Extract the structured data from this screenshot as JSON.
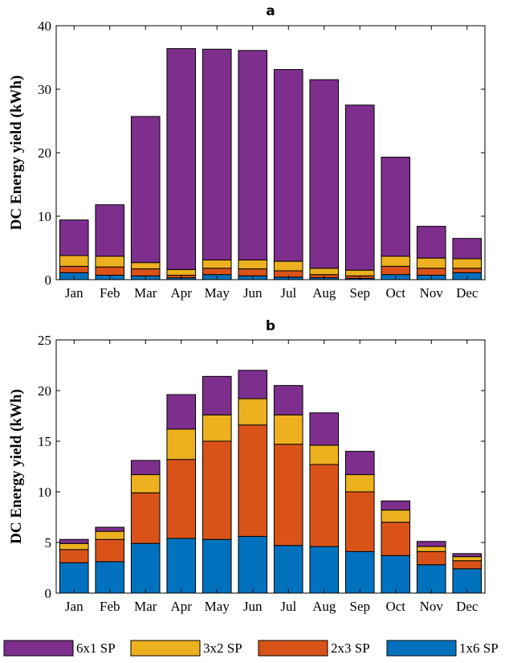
{
  "chart_data": [
    {
      "type": "bar",
      "stacked": true,
      "title": "a",
      "xlabel": "",
      "ylabel": "DC Energy yield (kWh)",
      "ylim": [
        0,
        40
      ],
      "yticks": [
        0,
        10,
        20,
        30,
        40
      ],
      "categories": [
        "Jan",
        "Feb",
        "Mar",
        "Apr",
        "May",
        "Jun",
        "Jul",
        "Aug",
        "Sep",
        "Oct",
        "Nov",
        "Dec"
      ],
      "series": [
        {
          "name": "1x6 SP",
          "color": "#0072bd",
          "values": [
            1.1,
            0.7,
            0.6,
            0.3,
            0.8,
            0.6,
            0.4,
            0.3,
            0.2,
            0.8,
            0.7,
            1.1
          ]
        },
        {
          "name": "2x3 SP",
          "color": "#d95319",
          "values": [
            1.0,
            1.3,
            1.1,
            0.4,
            1.0,
            1.1,
            1.0,
            0.5,
            0.4,
            1.3,
            1.1,
            0.7
          ]
        },
        {
          "name": "3x2 SP",
          "color": "#edb120",
          "values": [
            1.7,
            1.7,
            1.0,
            0.9,
            1.3,
            1.4,
            1.5,
            1.0,
            0.9,
            1.6,
            1.6,
            1.5
          ]
        },
        {
          "name": "6x1 SP",
          "color": "#7e2f8e",
          "values": [
            5.6,
            8.1,
            23.0,
            34.8,
            33.2,
            33.0,
            30.2,
            29.7,
            26.0,
            15.6,
            5.0,
            3.2
          ]
        }
      ]
    },
    {
      "type": "bar",
      "stacked": true,
      "title": "b",
      "xlabel": "",
      "ylabel": "DC Energy yield (kWh)",
      "ylim": [
        0,
        25
      ],
      "yticks": [
        0,
        5,
        10,
        15,
        20,
        25
      ],
      "categories": [
        "Jan",
        "Feb",
        "Mar",
        "Apr",
        "May",
        "Jun",
        "Jul",
        "Aug",
        "Sep",
        "Oct",
        "Nov",
        "Dec"
      ],
      "series": [
        {
          "name": "1x6 SP",
          "color": "#0072bd",
          "values": [
            3.0,
            3.1,
            4.9,
            5.4,
            5.3,
            5.6,
            4.7,
            4.6,
            4.1,
            3.7,
            2.8,
            2.4
          ]
        },
        {
          "name": "2x3 SP",
          "color": "#d95319",
          "values": [
            1.3,
            2.2,
            5.0,
            7.8,
            9.7,
            11.0,
            10.0,
            8.1,
            5.9,
            3.3,
            1.3,
            0.8
          ]
        },
        {
          "name": "3x2 SP",
          "color": "#edb120",
          "values": [
            0.6,
            0.8,
            1.8,
            3.0,
            2.6,
            2.6,
            2.9,
            1.9,
            1.7,
            1.2,
            0.5,
            0.4
          ]
        },
        {
          "name": "6x1 SP",
          "color": "#7e2f8e",
          "values": [
            0.4,
            0.4,
            1.4,
            3.4,
            3.8,
            2.8,
            2.9,
            3.2,
            2.3,
            0.9,
            0.5,
            0.3
          ]
        }
      ]
    }
  ],
  "legend": {
    "placement": "bottom",
    "items": [
      {
        "name": "6x1 SP",
        "color": "#7e2f8e"
      },
      {
        "name": "3x2 SP",
        "color": "#edb120"
      },
      {
        "name": "2x3 SP",
        "color": "#d95319"
      },
      {
        "name": "1x6 SP",
        "color": "#0072bd"
      }
    ]
  }
}
